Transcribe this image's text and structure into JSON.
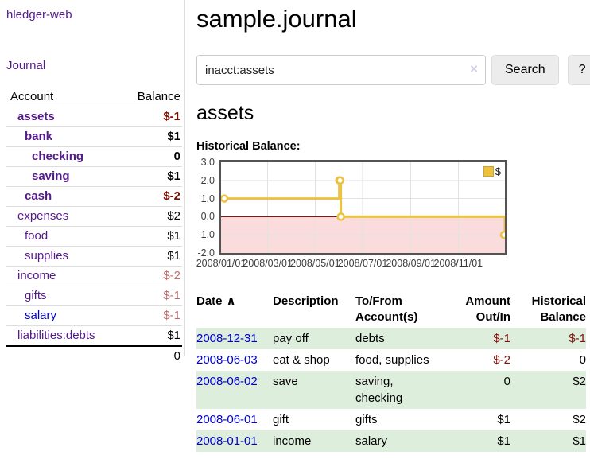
{
  "brand": "hledger-web",
  "nav": {
    "journal_label": "Journal"
  },
  "sidebar": {
    "header": {
      "account": "Account",
      "balance": "Balance"
    },
    "accounts": [
      {
        "name": "assets",
        "balance": "$-1",
        "depth": 1,
        "bold": true,
        "negative": "strong"
      },
      {
        "name": "bank",
        "balance": "$1",
        "depth": 2,
        "bold": true,
        "negative": "none"
      },
      {
        "name": "checking",
        "balance": "0",
        "depth": 3,
        "bold": true,
        "negative": "none"
      },
      {
        "name": "saving",
        "balance": "$1",
        "depth": 3,
        "bold": true,
        "negative": "none"
      },
      {
        "name": "cash",
        "balance": "$-2",
        "depth": 2,
        "bold": true,
        "negative": "strong"
      },
      {
        "name": "expenses",
        "balance": "$2",
        "depth": 1,
        "bold": false,
        "negative": "none"
      },
      {
        "name": "food",
        "balance": "$1",
        "depth": 2,
        "bold": false,
        "negative": "none"
      },
      {
        "name": "supplies",
        "balance": "$1",
        "depth": 2,
        "bold": false,
        "negative": "none"
      },
      {
        "name": "income",
        "balance": "$-2",
        "depth": 1,
        "bold": false,
        "negative": "dim"
      },
      {
        "name": "gifts",
        "balance": "$-1",
        "depth": 2,
        "bold": false,
        "negative": "dim"
      },
      {
        "name": "salary",
        "balance": "$-1",
        "depth": 2,
        "bold": false,
        "negative": "dim",
        "link_color": "blue"
      },
      {
        "name": "liabilities:debts",
        "balance": "$1",
        "depth": 1,
        "bold": false,
        "negative": "none"
      }
    ],
    "total": "0"
  },
  "header": {
    "title": "sample.journal"
  },
  "search": {
    "value": "inacct:assets",
    "clear_icon": "×",
    "search_label": "Search",
    "help_label": "?"
  },
  "account_page": {
    "title": "assets",
    "chart_label": "Historical Balance:"
  },
  "chart_data": {
    "type": "line",
    "step": true,
    "title": "Historical Balance",
    "series": [
      {
        "name": "$",
        "color": "#edc240",
        "points": [
          [
            "2008-01-01",
            1
          ],
          [
            "2008-06-01",
            2
          ],
          [
            "2008-06-02",
            2
          ],
          [
            "2008-06-03",
            0
          ],
          [
            "2008-12-31",
            -1
          ]
        ]
      }
    ],
    "ylim": [
      -2.0,
      3.0
    ],
    "y_ticks": [
      "3.0",
      "2.0",
      "1.0",
      "0.0",
      "-1.0",
      "-2.0"
    ],
    "x_ticks": [
      "2008/01/01",
      "2008/03/01",
      "2008/05/01",
      "2008/07/01",
      "2008/09/01",
      "2008/11/01"
    ],
    "x_range": [
      "2008-01-01",
      "2008-12-31"
    ],
    "legend_position": "top-right",
    "grid": true,
    "negative_region_color": "#fbdcdc",
    "zero_line_color": "#8a1212",
    "gridline_color": "#e2e2e2",
    "border_color": "#545454"
  },
  "register": {
    "sort_icon": "∧",
    "columns": [
      {
        "label": "Date",
        "align": "left"
      },
      {
        "label": "Description",
        "align": "left"
      },
      {
        "label": "To/From Account(s)",
        "align": "left"
      },
      {
        "label": "Amount Out/In",
        "align": "right"
      },
      {
        "label": "Historical Balance",
        "align": "right"
      }
    ],
    "rows": [
      {
        "date": "2008-12-31",
        "description": "pay off",
        "accounts": "debts",
        "amount": "$-1",
        "amount_negative": true,
        "balance": "$-1",
        "balance_negative": true
      },
      {
        "date": "2008-06-03",
        "description": "eat & shop",
        "accounts": "food, supplies",
        "amount": "$-2",
        "amount_negative": true,
        "balance": "0",
        "balance_negative": false
      },
      {
        "date": "2008-06-02",
        "description": "save",
        "accounts": "saving, checking",
        "amount": "0",
        "amount_negative": false,
        "balance": "$2",
        "balance_negative": false
      },
      {
        "date": "2008-06-01",
        "description": "gift",
        "accounts": "gifts",
        "amount": "$1",
        "amount_negative": false,
        "balance": "$2",
        "balance_negative": false
      },
      {
        "date": "2008-01-01",
        "description": "income",
        "accounts": "salary",
        "amount": "$1",
        "amount_negative": false,
        "balance": "$1",
        "balance_negative": false
      }
    ]
  },
  "colors": {
    "link_purple": "#551a8b",
    "link_blue": "#0000cc",
    "negative_strong": "#7f0b00",
    "negative_dim": "#bd6c6c",
    "negative_table": "#84120a",
    "row_stripe_green": "#deeedd",
    "series_yellow": "#edc240",
    "button_bg": "#ececec"
  }
}
